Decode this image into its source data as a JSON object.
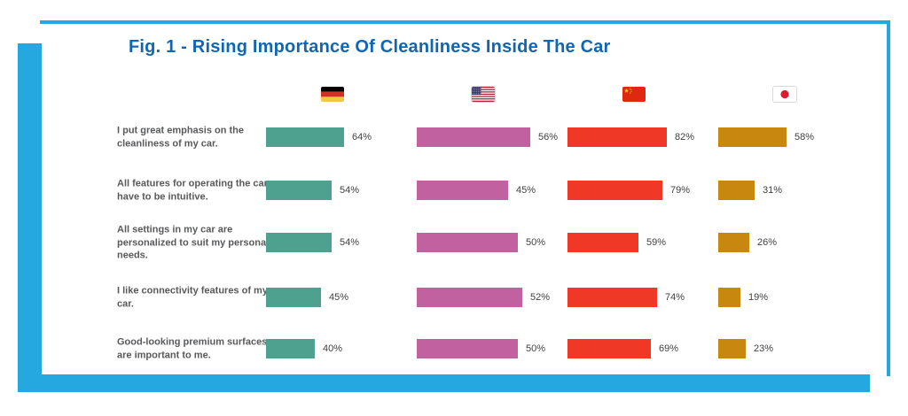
{
  "title": "Fig. 1 - Rising Importance Of Cleanliness Inside The Car",
  "frame": {
    "accent_color": "#25A8E0",
    "title_color": "#1166B2",
    "statement_text_color": "#58595B",
    "value_text_color": "#414042"
  },
  "chart_data": {
    "type": "bar",
    "orientation": "horizontal",
    "title": "Fig. 1 - Rising Importance Of Cleanliness Inside The Car",
    "value_suffix": "%",
    "xlim": [
      0,
      100
    ],
    "grid": false,
    "legend_position": "top",
    "legend_style": "country-flags",
    "categories": [
      "I put great emphasis on the cleanliness of my car.",
      "All features for operating the car have to be intuitive.",
      "All settings in my car are personalized to suit my personal needs.",
      "I like connectivity features of my car.",
      "Good-looking premium surfaces are important to me."
    ],
    "series": [
      {
        "name": "Germany",
        "icon": "germany-flag-icon",
        "color": "#4DA18E",
        "values": [
          64,
          54,
          54,
          45,
          40
        ]
      },
      {
        "name": "USA",
        "icon": "usa-flag-icon",
        "color": "#C2619F",
        "values": [
          56,
          45,
          50,
          52,
          50
        ]
      },
      {
        "name": "China",
        "icon": "china-flag-icon",
        "color": "#EF3826",
        "values": [
          82,
          79,
          59,
          74,
          69
        ]
      },
      {
        "name": "Japan",
        "icon": "japan-flag-icon",
        "color": "#C8880F",
        "values": [
          58,
          31,
          26,
          19,
          23
        ]
      }
    ]
  }
}
